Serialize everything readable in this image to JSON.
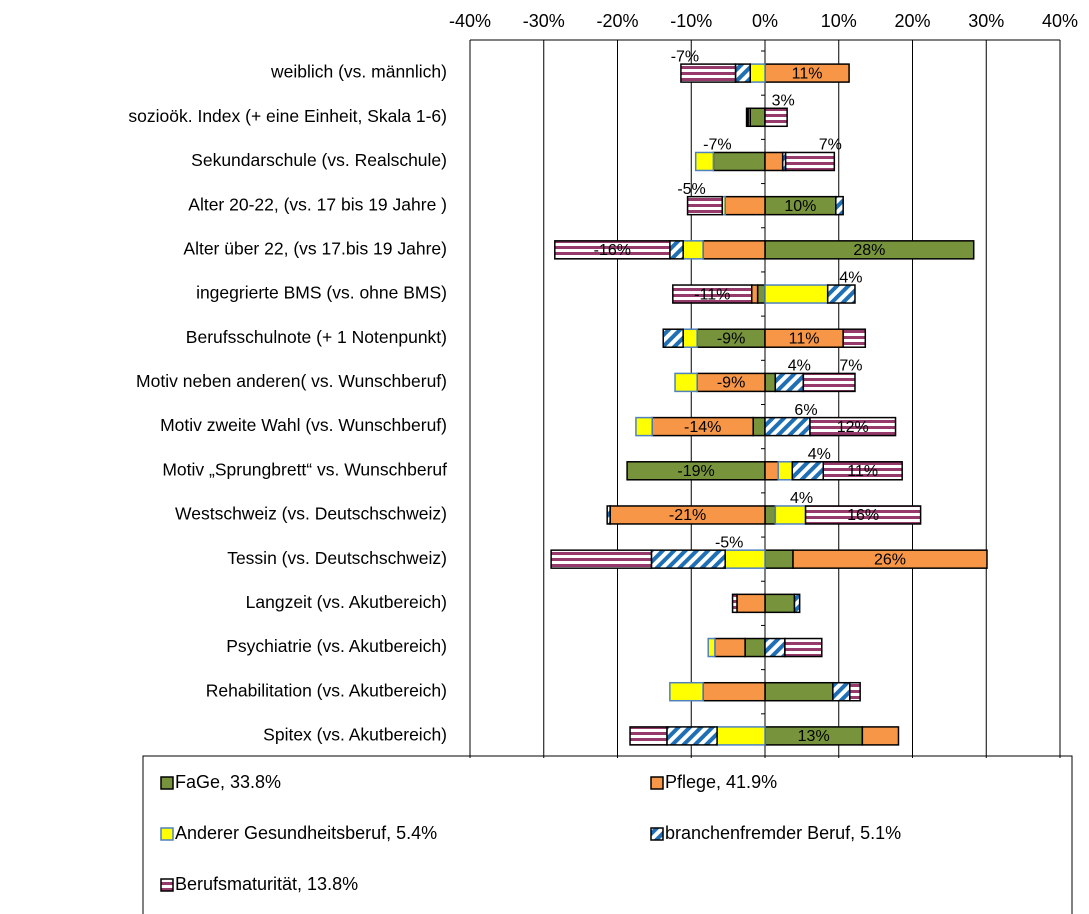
{
  "chart_data": {
    "type": "diverging-stacked-bar",
    "categories": [
      "weiblich (vs. männlich)",
      "sozioök. Index (+ eine Einheit, Skala 1-6)",
      "Sekundarschule (vs. Realschule)",
      "Alter 20-22, (vs. 17 bis 19 Jahre  )",
      "Alter über 22, (vs  17.bis 19 Jahre)",
      "ingegrierte BMS (vs. ohne BMS)",
      "Berufsschulnote (+ 1 Notenpunkt)",
      "Motiv neben anderen( vs. Wunschberuf)",
      "Motiv zweite Wahl (vs. Wunschberuf)",
      "Motiv „Sprungbrett“ vs. Wunschberuf",
      "Westschweiz (vs. Deutschschweiz)",
      "Tessin (vs. Deutschschweiz)",
      "Langzeit (vs. Akutbereich)",
      "Psychiatrie (vs. Akutbereich)",
      "Rehabilitation (vs. Akutbereich)",
      "Spitex (vs. Akutbereich)"
    ],
    "series": [
      {
        "name": "FaGe, 33.8%",
        "color": "#77933c",
        "pattern": "solid",
        "values": [
          0,
          -2,
          -7,
          9.6,
          28.3,
          -1,
          -9.2,
          1.4,
          -1.6,
          -18.7,
          1.4,
          3.8,
          4,
          -2.7,
          9.2,
          13.2
        ],
        "value_labels": [
          null,
          null,
          "-7%",
          "10%",
          "28%",
          null,
          "-9%",
          null,
          null,
          "-19%",
          null,
          null,
          null,
          null,
          null,
          "13%"
        ]
      },
      {
        "name": "Pflege, 41.9%",
        "color": "#f79646",
        "pattern": "solid",
        "values": [
          11.4,
          -0.3,
          2.4,
          -5.4,
          -8.4,
          -0.8,
          10.6,
          -9.2,
          -13.7,
          1.8,
          -21,
          26.3,
          -3.8,
          -4.1,
          -8.4,
          4.9
        ],
        "value_labels": [
          "11%",
          null,
          null,
          null,
          null,
          null,
          "11%",
          "-9%",
          "-14%",
          null,
          "-21%",
          "26%",
          null,
          null,
          null,
          null
        ]
      },
      {
        "name": "Anderer Gesundheitsberuf, 5.4%",
        "color": "#ffff00",
        "pattern": "solid",
        "values": [
          -2,
          0,
          -2.4,
          -0.4,
          -2.7,
          8.5,
          -1.9,
          -3,
          -2.2,
          1.9,
          4.1,
          -5.4,
          0,
          -0.9,
          -4.5,
          -6.5
        ],
        "value_labels": [
          null,
          null,
          null,
          null,
          null,
          null,
          null,
          null,
          null,
          null,
          "4%",
          "-5%",
          null,
          null,
          null,
          null
        ]
      },
      {
        "name": "branchenfremder Beruf, 5.1%",
        "color": "#1f6fb5",
        "pattern": "diagonal",
        "values": [
          -2,
          -0.2,
          0.4,
          1,
          -1.8,
          3.7,
          -2.7,
          3.8,
          6.1,
          4.2,
          -0.4,
          -10,
          0.7,
          2.7,
          2.3,
          -6.8
        ],
        "value_labels": [
          null,
          null,
          null,
          null,
          null,
          "4%",
          null,
          "4%",
          "6%",
          "4%",
          null,
          null,
          null,
          null,
          null,
          null
        ]
      },
      {
        "name": "Berufsmaturität, 13.8%",
        "color": "#953a6a",
        "pattern": "horizontal",
        "values": [
          -7.4,
          3,
          6.6,
          -4.7,
          -15.6,
          -10.7,
          3,
          7,
          11.6,
          10.7,
          15.6,
          -13.6,
          -0.6,
          5,
          1.4,
          -5
        ],
        "value_labels": [
          "-7%",
          "3%",
          "7%",
          "-5%",
          "-16%",
          "-11%",
          null,
          "7%",
          "12%",
          "11%",
          "16%",
          null,
          null,
          null,
          null,
          null
        ]
      }
    ],
    "xlim": [
      -40,
      40
    ],
    "xticks": [
      {
        "value": -40,
        "label": "-40%"
      },
      {
        "value": -30,
        "label": "-30%"
      },
      {
        "value": -20,
        "label": "-20%"
      },
      {
        "value": -10,
        "label": "-10%"
      },
      {
        "value": 0,
        "label": "0%"
      },
      {
        "value": 10,
        "label": "10%"
      },
      {
        "value": 20,
        "label": "20%"
      },
      {
        "value": 30,
        "label": "30%"
      },
      {
        "value": 40,
        "label": "40%"
      }
    ],
    "grid": true
  }
}
